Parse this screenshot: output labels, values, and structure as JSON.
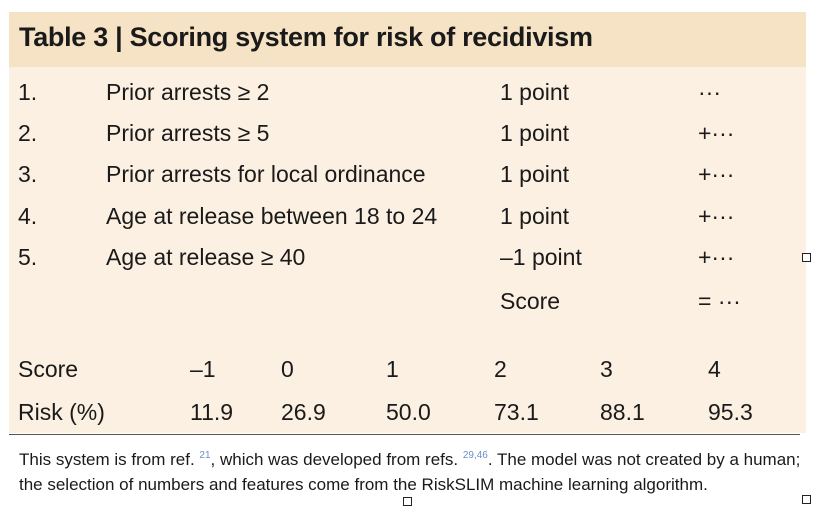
{
  "table": {
    "title": "Table 3 | Scoring system for risk of recidivism",
    "rows": [
      {
        "num": "1.",
        "feature": "Prior arrests ≥ 2",
        "points": "1 point",
        "op": "···"
      },
      {
        "num": "2.",
        "feature": "Prior arrests ≥ 5",
        "points": "1 point",
        "op": "+···"
      },
      {
        "num": "3.",
        "feature": "Prior arrests for local ordinance",
        "points": "1 point",
        "op": "+···"
      },
      {
        "num": "4.",
        "feature": "Age at release between 18 to 24",
        "points": "1 point",
        "op": "+···"
      },
      {
        "num": "5.",
        "feature": "Age at release ≥ 40",
        "points": "–1 point",
        "op": "+···"
      }
    ],
    "score_label": "Score",
    "score_op": "= ···",
    "risk_table": {
      "header_label": "Score",
      "scores": [
        "–1",
        "0",
        "1",
        "2",
        "3",
        "4"
      ],
      "risk_label": "Risk (%)",
      "risks": [
        "11.9",
        "26.9",
        "50.0",
        "73.1",
        "88.1",
        "95.3"
      ]
    }
  },
  "footnote": {
    "part1": "This system is from ref. ",
    "ref1": "21",
    "part2": ", which was developed from refs. ",
    "ref2": "29,46",
    "part3": ". The model was not created by a human; the selection of numbers and features come from the RiskSLIM machine learning algorithm."
  }
}
